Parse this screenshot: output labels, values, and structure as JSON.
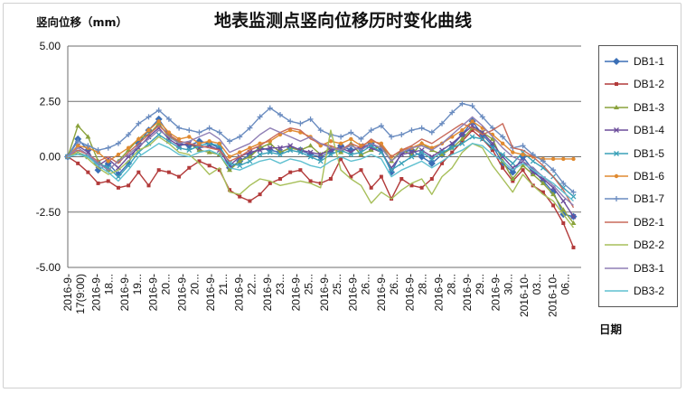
{
  "chart_data": {
    "type": "line",
    "title": "地表监测点竖向位移历时变化曲线",
    "ylabel": "竖向位移（mm）",
    "xlabel": "日期",
    "ylim": [
      -5,
      5
    ],
    "yticks": [
      "5.00",
      "2.50",
      "0.00",
      "-2.50",
      "-5.00"
    ],
    "ytick_values": [
      5,
      2.5,
      0,
      -2.5,
      -5
    ],
    "x_tick_labels": [
      "2016-9-17(9:00)",
      "2016-9-18...",
      "2016-9-19...",
      "2016-9-20...",
      "2016-9-20...",
      "2016-9-21...",
      "2016-9-22...",
      "2016-9-23...",
      "2016-9-25...",
      "2016-9-25...",
      "2016-9-26...",
      "2016-9-26...",
      "2016-9-28...",
      "2016-9-28...",
      "2016-9-29...",
      "2016-9-30...",
      "2016-10-03...",
      "2016-10-06..."
    ],
    "grid": "horizontal",
    "legend_position": "right",
    "series": [
      {
        "name": "DB1-1",
        "color": "#3b6fb6",
        "marker": "diamond",
        "values": [
          0,
          0.8,
          0.3,
          -0.6,
          -0.3,
          -0.8,
          -0.3,
          0.6,
          1.2,
          1.7,
          1.0,
          0.6,
          0.5,
          0.7,
          0.6,
          0.4,
          -0.5,
          -0.2,
          0.1,
          0.4,
          0.3,
          0.2,
          0.4,
          0.3,
          0.1,
          0.0,
          0.2,
          0.5,
          0.3,
          0.4,
          0.6,
          0.3,
          -0.7,
          0.2,
          0.3,
          0.0,
          -0.3,
          0.1,
          0.5,
          1.0,
          1.6,
          1.0,
          0.5,
          -0.3,
          -0.7,
          0.0,
          -0.6,
          -1.1,
          -1.6,
          -2.6,
          -2.7
        ]
      },
      {
        "name": "DB1-2",
        "color": "#b23a3a",
        "marker": "square",
        "values": [
          0,
          -0.3,
          -0.7,
          -1.2,
          -1.1,
          -1.4,
          -1.3,
          -0.7,
          -1.3,
          -0.6,
          -0.7,
          -0.9,
          -0.5,
          -0.2,
          -0.4,
          -0.6,
          -1.5,
          -1.8,
          -2.0,
          -1.7,
          -1.2,
          -1.0,
          -0.7,
          -0.6,
          -1.1,
          -1.2,
          -1.0,
          -0.1,
          -0.9,
          -0.6,
          -1.4,
          -0.9,
          -1.9,
          -1.0,
          -1.3,
          -1.4,
          -1.0,
          -0.3,
          0.2,
          0.7,
          1.2,
          0.8,
          0.3,
          -0.5,
          -1.1,
          -0.6,
          -1.3,
          -1.6,
          -2.2,
          -3.0,
          -4.1
        ]
      },
      {
        "name": "DB1-3",
        "color": "#8aa23c",
        "marker": "triangle",
        "values": [
          0,
          1.4,
          0.9,
          -0.2,
          -0.6,
          -0.2,
          0.3,
          0.8,
          1.0,
          1.5,
          0.9,
          0.7,
          0.6,
          0.3,
          0.2,
          0.1,
          -0.6,
          -0.2,
          0.0,
          0.4,
          0.6,
          0.2,
          0.4,
          0.3,
          0.5,
          0.1,
          0.4,
          0.2,
          0.6,
          0.1,
          0.3,
          0.5,
          -0.2,
          0.3,
          0.1,
          0.6,
          0.3,
          0.1,
          0.4,
          0.8,
          1.3,
          1.1,
          0.8,
          -0.2,
          -1.0,
          -0.4,
          -0.8,
          -1.2,
          -1.7,
          -2.4,
          -3.0
        ]
      },
      {
        "name": "DB1-4",
        "color": "#6b4c9a",
        "marker": "x",
        "values": [
          0,
          0.5,
          0.2,
          -0.4,
          -0.1,
          -0.5,
          0.0,
          0.4,
          0.9,
          1.3,
          0.8,
          0.5,
          0.6,
          0.4,
          0.5,
          0.3,
          -0.4,
          0.0,
          0.2,
          0.3,
          0.4,
          0.4,
          0.5,
          0.3,
          0.2,
          0.1,
          0.3,
          0.4,
          0.2,
          0.5,
          0.4,
          0.2,
          -0.5,
          0.1,
          0.2,
          0.3,
          0.0,
          0.3,
          0.6,
          1.0,
          1.4,
          1.1,
          0.6,
          0.0,
          -0.5,
          -0.2,
          -0.7,
          -1.0,
          -1.4,
          -2.0,
          -2.7
        ]
      },
      {
        "name": "DB1-5",
        "color": "#3aa1b8",
        "marker": "x",
        "values": [
          0,
          0.2,
          0.0,
          -0.3,
          -0.5,
          -0.9,
          -0.4,
          0.2,
          0.6,
          1.0,
          0.7,
          0.4,
          0.3,
          0.5,
          0.6,
          0.5,
          -0.3,
          -0.4,
          -0.2,
          0.1,
          0.2,
          0.1,
          0.3,
          0.2,
          0.0,
          -0.2,
          0.1,
          0.3,
          0.1,
          0.2,
          0.5,
          0.2,
          -0.6,
          -0.3,
          0.0,
          0.2,
          -0.1,
          0.2,
          0.4,
          0.6,
          0.9,
          0.8,
          0.4,
          0.1,
          -0.3,
          0.2,
          -0.2,
          -0.5,
          -0.9,
          -1.4,
          -1.8
        ]
      },
      {
        "name": "DB1-6",
        "color": "#e08a30",
        "marker": "circle",
        "values": [
          0,
          0.5,
          0.4,
          0.2,
          -0.2,
          0.1,
          0.4,
          0.8,
          1.2,
          1.6,
          1.1,
          0.8,
          0.9,
          0.6,
          0.7,
          0.6,
          0.0,
          0.2,
          0.4,
          0.6,
          0.7,
          1.0,
          1.2,
          1.1,
          0.9,
          0.5,
          0.7,
          0.6,
          0.8,
          0.5,
          0.7,
          0.6,
          0.0,
          0.3,
          0.4,
          0.6,
          0.4,
          0.6,
          0.9,
          1.2,
          1.6,
          1.3,
          1.0,
          0.6,
          0.2,
          0.1,
          0.0,
          -0.1,
          -0.1,
          -0.1,
          -0.1
        ]
      },
      {
        "name": "DB1-7",
        "color": "#6a8cc0",
        "marker": "plus",
        "values": [
          0,
          0.7,
          0.5,
          0.3,
          0.4,
          0.6,
          1.0,
          1.5,
          1.8,
          2.1,
          1.7,
          1.3,
          1.2,
          1.1,
          1.3,
          1.1,
          0.7,
          0.9,
          1.3,
          1.8,
          2.2,
          1.9,
          1.6,
          1.5,
          1.7,
          1.2,
          1.0,
          0.9,
          1.1,
          0.8,
          1.2,
          1.4,
          0.9,
          1.0,
          1.2,
          1.3,
          1.1,
          1.5,
          2.0,
          2.4,
          2.3,
          1.8,
          1.3,
          0.9,
          0.4,
          0.5,
          0.1,
          -0.2,
          -0.6,
          -1.2,
          -1.6
        ]
      },
      {
        "name": "DB2-1",
        "color": "#c96a5a",
        "marker": "none",
        "values": [
          0,
          0.3,
          0.1,
          -0.2,
          0.0,
          -0.3,
          0.2,
          0.6,
          1.0,
          1.4,
          1.0,
          0.7,
          0.6,
          0.5,
          0.4,
          0.3,
          -0.2,
          0.0,
          0.3,
          0.5,
          0.8,
          1.1,
          1.3,
          1.2,
          0.8,
          0.6,
          0.5,
          0.3,
          0.6,
          0.4,
          0.8,
          0.5,
          0.0,
          0.3,
          0.5,
          0.8,
          0.6,
          0.9,
          1.2,
          1.5,
          1.3,
          1.0,
          1.2,
          1.5,
          0.4,
          0.3,
          0.0,
          -0.4,
          -0.9,
          -1.5,
          -2.3
        ]
      },
      {
        "name": "DB2-2",
        "color": "#a7bf5a",
        "marker": "none",
        "values": [
          0,
          0.2,
          -0.1,
          -0.5,
          -0.8,
          -0.6,
          -0.2,
          0.3,
          0.5,
          0.9,
          0.6,
          0.2,
          0.1,
          -0.3,
          -0.8,
          -0.5,
          -1.6,
          -1.7,
          -1.3,
          -1.0,
          -1.1,
          -1.3,
          -1.2,
          -1.1,
          -1.2,
          -1.4,
          1.2,
          -0.6,
          -1.0,
          -1.3,
          -2.1,
          -1.6,
          -1.9,
          -1.5,
          -1.2,
          -1.0,
          -1.7,
          -0.9,
          -0.5,
          0.2,
          0.6,
          0.4,
          -0.4,
          -1.0,
          -1.6,
          -0.8,
          -1.3,
          -1.7,
          -2.0,
          -2.6,
          -3.2
        ]
      },
      {
        "name": "DB3-1",
        "color": "#8f7fb5",
        "marker": "none",
        "values": [
          0,
          0.4,
          0.1,
          -0.3,
          -0.6,
          -0.2,
          0.1,
          0.5,
          0.8,
          1.2,
          0.9,
          0.6,
          0.7,
          0.9,
          1.1,
          0.8,
          0.2,
          0.4,
          0.6,
          1.0,
          1.3,
          1.1,
          0.9,
          0.7,
          0.9,
          0.6,
          0.4,
          0.3,
          0.5,
          0.3,
          0.6,
          0.4,
          -0.2,
          0.2,
          0.4,
          0.5,
          0.3,
          0.6,
          1.0,
          1.4,
          1.8,
          1.4,
          0.9,
          0.4,
          0.0,
          -0.2,
          -0.5,
          -0.9,
          -1.3,
          -1.8,
          -2.2
        ]
      },
      {
        "name": "DB3-2",
        "color": "#5fc0d0",
        "marker": "none",
        "values": [
          0,
          0.1,
          0.0,
          -0.4,
          -0.7,
          -1.1,
          -0.6,
          0.0,
          0.3,
          0.6,
          0.4,
          0.1,
          0.0,
          0.2,
          0.3,
          0.1,
          -0.5,
          -0.6,
          -0.4,
          -0.2,
          -0.1,
          -0.3,
          -0.1,
          -0.2,
          -0.4,
          -0.5,
          -0.2,
          0.0,
          -0.2,
          -0.1,
          0.1,
          -0.1,
          -0.9,
          -0.6,
          -0.4,
          -0.2,
          -0.5,
          -0.2,
          0.1,
          0.3,
          0.6,
          0.5,
          0.1,
          -0.2,
          -0.6,
          -0.3,
          -0.6,
          -0.9,
          -1.2,
          -1.6,
          -2.0
        ]
      }
    ]
  }
}
